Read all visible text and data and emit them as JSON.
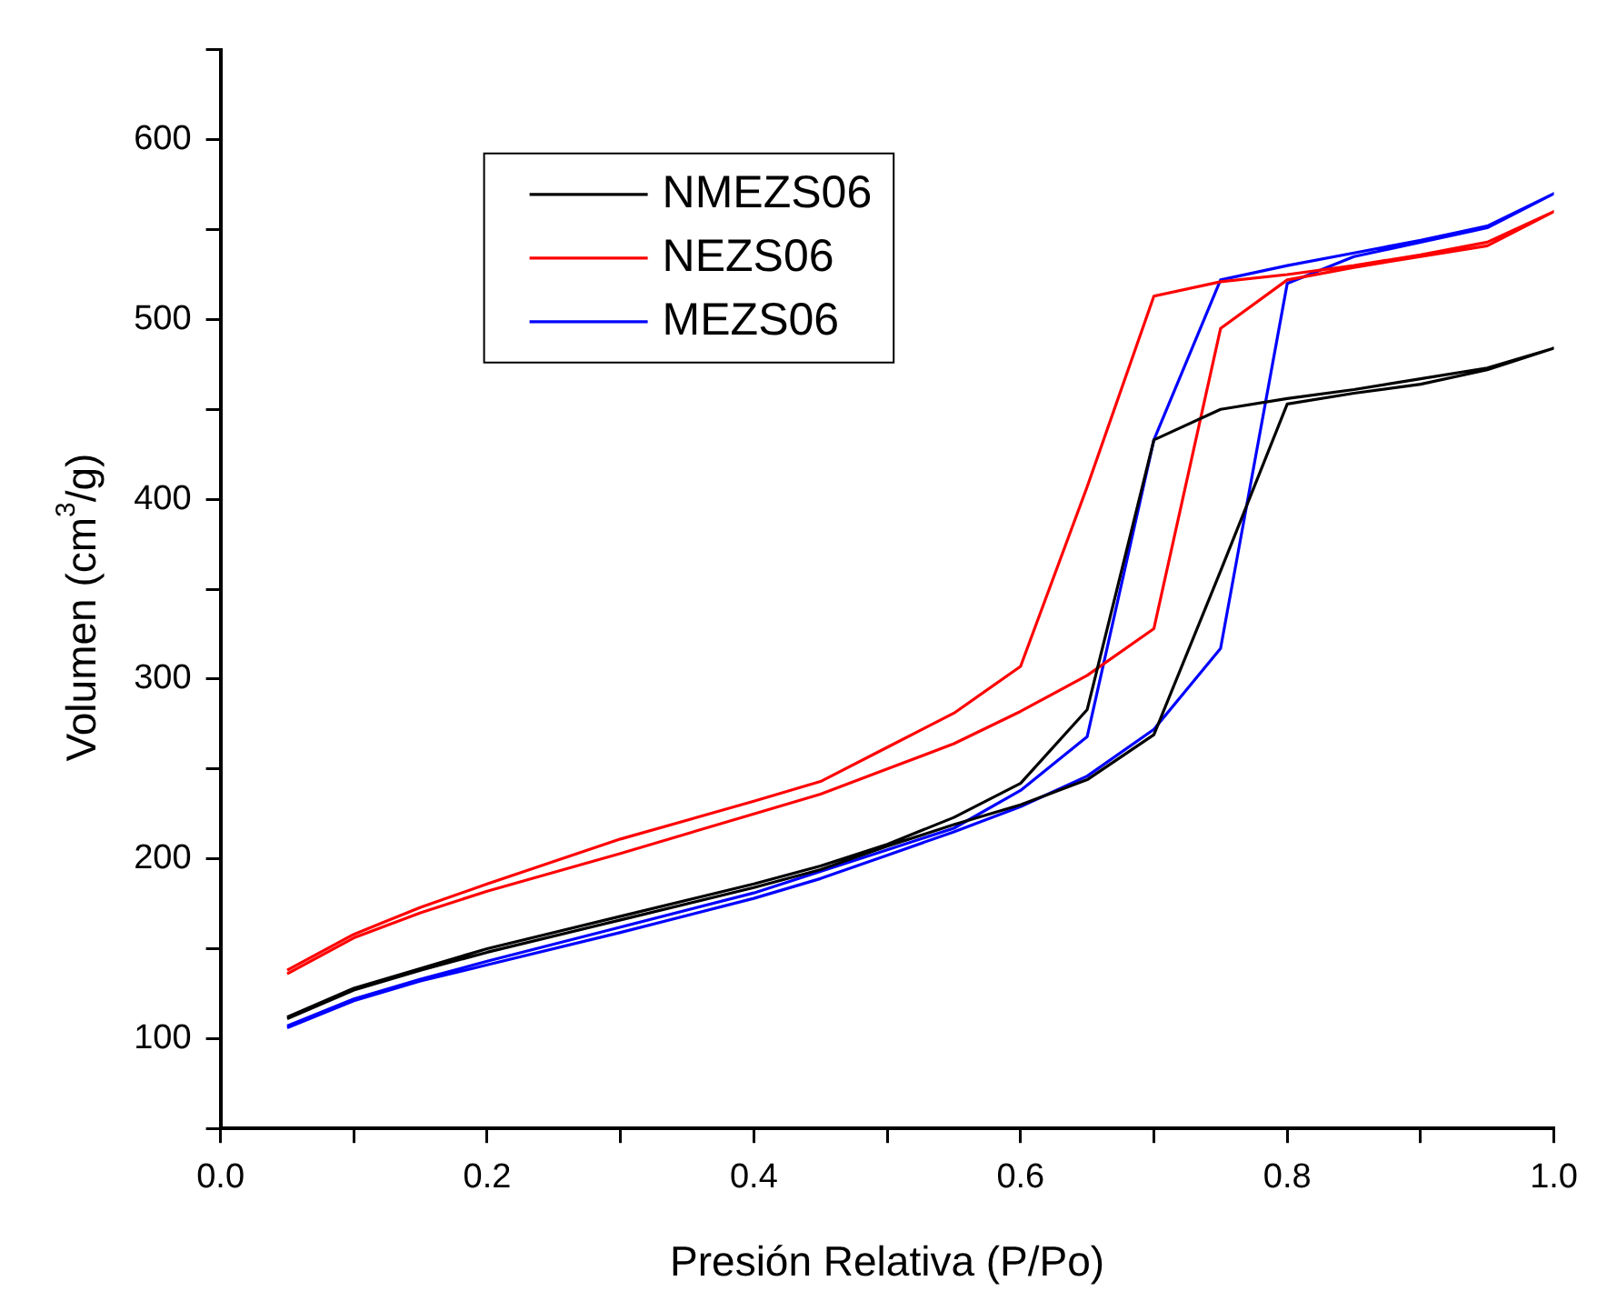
{
  "chart_data": {
    "type": "line",
    "xlabel": "Presión Relativa (P/Po)",
    "ylabel": "Volumen (cm$^{3}$/g)",
    "xlim": [
      0,
      1
    ],
    "xticks": [
      {
        "value": 0,
        "label": "0.0"
      },
      {
        "value": 0.1,
        "label": null
      },
      {
        "value": 0.2,
        "label": "0.2"
      },
      {
        "value": 0.3,
        "label": null
      },
      {
        "value": 0.4,
        "label": "0.4"
      },
      {
        "value": 0.5,
        "label": null
      },
      {
        "value": 0.6,
        "label": "0.6"
      },
      {
        "value": 0.7,
        "label": null
      },
      {
        "value": 0.8,
        "label": "0.8"
      },
      {
        "value": 0.9,
        "label": null
      },
      {
        "value": 1,
        "label": "1.0"
      }
    ],
    "ylim": [
      50,
      650
    ],
    "yticks": [
      {
        "value": 50,
        "label": null
      },
      100,
      {
        "value": 150,
        "label": null
      },
      200,
      {
        "value": 250,
        "label": null
      },
      300,
      {
        "value": 350,
        "label": null
      },
      400,
      {
        "value": 450,
        "label": null
      },
      500,
      {
        "value": 550,
        "label": null
      },
      600,
      {
        "value": 650,
        "label": null
      }
    ],
    "grid": false,
    "legend": "top left",
    "marker": "none",
    "line_style": "solid",
    "series": [
      {
        "name": "NMEZS06",
        "color": "#000000",
        "x": [
          0.05,
          0.1,
          0.15,
          0.2,
          0.3,
          0.4,
          0.45,
          0.5,
          0.55,
          0.6,
          0.65,
          0.7,
          0.75,
          0.8,
          0.85,
          0.9,
          0.95,
          1.0,
          0.95,
          0.9,
          0.85,
          0.8,
          0.75,
          0.7,
          0.65,
          0.6,
          0.55,
          0.5,
          0.45,
          0.4,
          0.3,
          0.2,
          0.15,
          0.1,
          0.05
        ],
        "values": [
          111,
          127,
          138,
          148,
          166,
          184,
          194,
          207,
          219,
          230,
          244,
          269,
          360,
          453,
          459,
          464,
          472,
          484,
          473,
          467,
          461,
          456,
          450,
          433,
          283,
          242,
          223,
          208,
          196,
          186,
          168,
          150,
          139,
          128,
          112
        ]
      },
      {
        "name": "NEZS06",
        "color": "#ff0000",
        "x": [
          0.05,
          0.1,
          0.15,
          0.2,
          0.3,
          0.4,
          0.45,
          0.5,
          0.55,
          0.6,
          0.65,
          0.7,
          0.75,
          0.8,
          0.85,
          0.9,
          0.95,
          1.0,
          0.95,
          0.9,
          0.85,
          0.8,
          0.75,
          0.7,
          0.65,
          0.6,
          0.55,
          0.5,
          0.45,
          0.4,
          0.3,
          0.2,
          0.15,
          0.1,
          0.05
        ],
        "values": [
          136,
          156,
          170,
          182,
          203,
          225,
          236,
          250,
          264,
          282,
          302,
          328,
          495,
          522,
          529,
          535,
          541,
          560,
          543,
          536,
          530,
          525,
          521,
          513,
          407,
          307,
          281,
          262,
          243,
          232,
          211,
          186,
          173,
          158,
          138
        ]
      },
      {
        "name": "MEZS06",
        "color": "#0000ff",
        "x": [
          0.05,
          0.1,
          0.15,
          0.2,
          0.3,
          0.4,
          0.45,
          0.5,
          0.55,
          0.6,
          0.65,
          0.7,
          0.75,
          0.8,
          0.85,
          0.9,
          0.95,
          1.0,
          0.95,
          0.9,
          0.85,
          0.8,
          0.75,
          0.7,
          0.65,
          0.6,
          0.55,
          0.5,
          0.45,
          0.4,
          0.3,
          0.2,
          0.15,
          0.1,
          0.05
        ],
        "values": [
          106,
          121,
          132,
          141,
          159,
          178,
          189,
          202,
          215,
          229,
          246,
          272,
          317,
          520,
          535,
          543,
          551,
          570,
          552,
          544,
          537,
          530,
          522,
          433,
          268,
          238,
          217,
          205,
          193,
          181,
          162,
          143,
          133,
          122,
          107
        ]
      }
    ]
  }
}
